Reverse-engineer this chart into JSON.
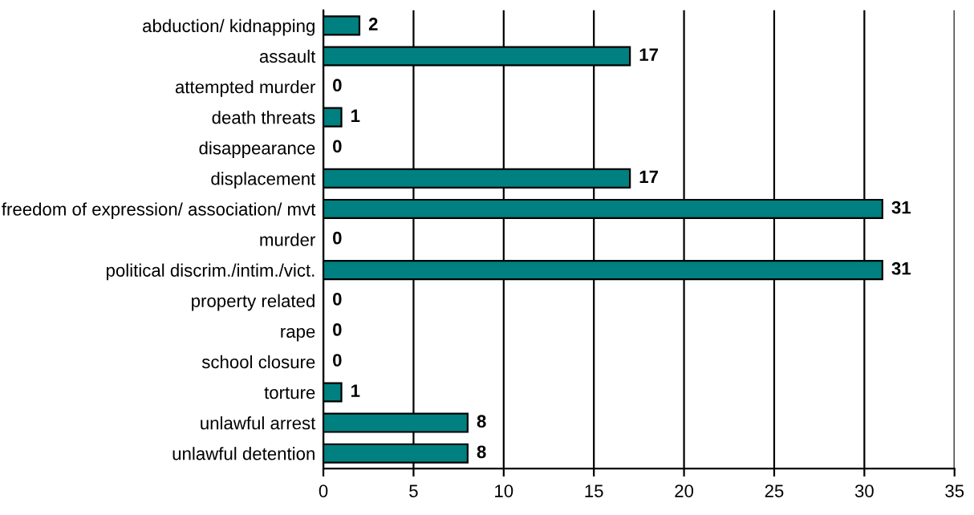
{
  "chart_data": {
    "type": "bar",
    "orientation": "horizontal",
    "categories": [
      "abduction/ kidnapping",
      "assault",
      "attempted murder",
      "death threats",
      "disappearance",
      "displacement",
      "freedom of expression/ association/ mvt",
      "murder",
      "political discrim./intim./vict.",
      "property related",
      "rape",
      "school closure",
      "torture",
      "unlawful arrest",
      "unlawful detention"
    ],
    "values": [
      2,
      17,
      0,
      1,
      0,
      17,
      31,
      0,
      31,
      0,
      0,
      0,
      1,
      8,
      8
    ],
    "color": "#008080",
    "xlim": [
      0,
      35
    ],
    "xticks": [
      0,
      5,
      10,
      15,
      20,
      25,
      30,
      35
    ],
    "grid": "x",
    "data_labels": true
  }
}
